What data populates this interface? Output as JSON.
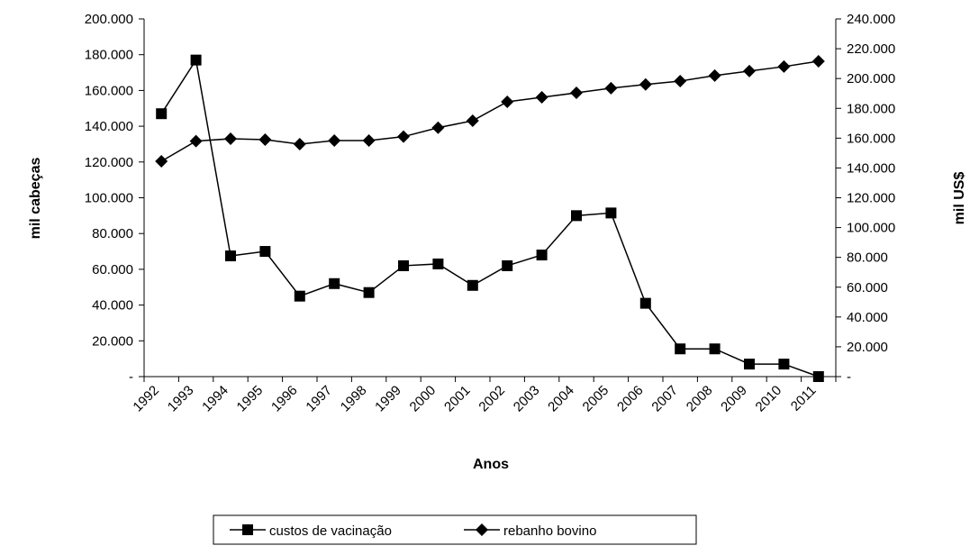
{
  "chart_data": {
    "type": "line",
    "xlabel": "Anos",
    "ylabel": "mil cabeças",
    "y2label": "mil US$",
    "categories": [
      "1992",
      "1993",
      "1994",
      "1995",
      "1996",
      "1997",
      "1998",
      "1999",
      "2000",
      "2001",
      "2002",
      "2003",
      "2004",
      "2005",
      "2006",
      "2007",
      "2008",
      "2009",
      "2010",
      "2011"
    ],
    "series": [
      {
        "name": "custos de vacinação",
        "color": "#000000",
        "marker": "square",
        "values": [
          147000,
          177000,
          67500,
          70000,
          45000,
          52000,
          47000,
          62000,
          63000,
          51000,
          62000,
          68000,
          90000,
          91500,
          41000,
          15500,
          15500,
          7000,
          7000,
          0
        ]
      },
      {
        "name": "rebanho bovino",
        "color": "#000000",
        "marker": "diamond",
        "axis": "y2",
        "values": [
          144500,
          158000,
          159600,
          159000,
          156000,
          158400,
          158400,
          161000,
          167000,
          171700,
          184400,
          187400,
          190400,
          193500,
          196000,
          198300,
          202000,
          205000,
          208000,
          211600
        ]
      }
    ],
    "ylim": [
      0,
      200000
    ],
    "yticks": [
      {
        "value": 0,
        "label": "-"
      },
      {
        "value": 20000,
        "label": "20.000"
      },
      {
        "value": 40000,
        "label": "40.000"
      },
      {
        "value": 60000,
        "label": "60.000"
      },
      {
        "value": 80000,
        "label": "80.000"
      },
      {
        "value": 100000,
        "label": "100.000"
      },
      {
        "value": 120000,
        "label": "120.000"
      },
      {
        "value": 140000,
        "label": "140.000"
      },
      {
        "value": 160000,
        "label": "160.000"
      },
      {
        "value": 180000,
        "label": "180.000"
      },
      {
        "value": 200000,
        "label": "200.000"
      }
    ],
    "y2lim": [
      0,
      240000
    ],
    "y2ticks": [
      {
        "value": 0,
        "label": "-"
      },
      {
        "value": 20000,
        "label": "20.000"
      },
      {
        "value": 40000,
        "label": "40.000"
      },
      {
        "value": 60000,
        "label": "60.000"
      },
      {
        "value": 80000,
        "label": "80.000"
      },
      {
        "value": 100000,
        "label": "100.000"
      },
      {
        "value": 120000,
        "label": "120.000"
      },
      {
        "value": 140000,
        "label": "140.000"
      },
      {
        "value": 160000,
        "label": "160.000"
      },
      {
        "value": 180000,
        "label": "180.000"
      },
      {
        "value": 200000,
        "label": "200.000"
      },
      {
        "value": 220000,
        "label": "220.000"
      },
      {
        "value": 240000,
        "label": "240.000"
      }
    ],
    "legend": "bottom"
  }
}
